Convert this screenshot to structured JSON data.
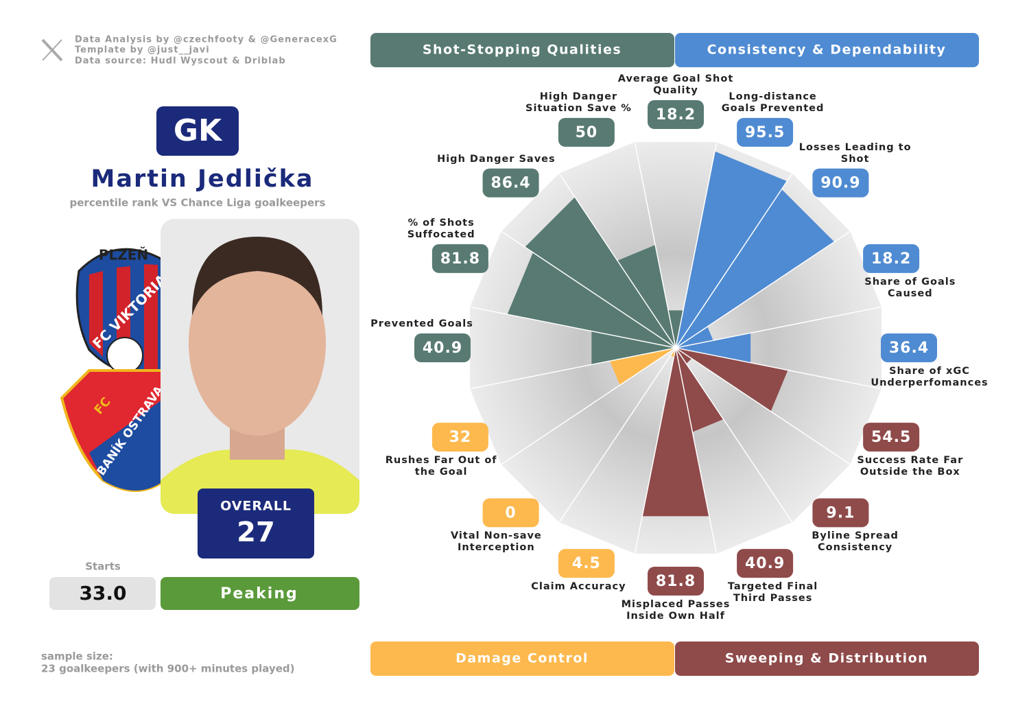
{
  "credits": [
    "Data Analysis by @czechfooty & @GeneracexG",
    "Template by @just__javi",
    "Data source: Hudl Wyscout & Driblab"
  ],
  "player": {
    "position": "GK",
    "name": "Martin Jedlička",
    "subtitle": "percentile rank VS Chance Liga goalkeepers",
    "overall_label": "OVERALL",
    "overall": 27,
    "starts_label": "Starts",
    "starts": "33.0",
    "form": "Peaking"
  },
  "logos": {
    "club_1_top": "PLZEŇ",
    "club_1_name": "FC VIKTORIA",
    "club_2_prefix": "FC",
    "club_2_name": "BANÍK OSTRAVA"
  },
  "sample_size": [
    "sample size:",
    "23 goalkeepers (with 900+ minutes played)"
  ],
  "chart_data": {
    "type": "polar-bar",
    "rlim": [
      0,
      100
    ],
    "categories": [
      "Average Goal Shot Quality",
      "Long-distance Goals Prevented",
      "Losses Leading to Shot",
      "Share of Goals Caused",
      "Share of xGC Underperfomances",
      "Success Rate Far Outside the Box",
      "Byline Spread Consistency",
      "Targeted Final Third Passes",
      "Misplaced Passes Inside Own Half",
      "Claim Accuracy",
      "Vital Non-save Interception",
      "Rushes Far Out of the Goal",
      "Prevented Goals",
      "% of Shots Suffocated",
      "High Danger Saves",
      "High Danger Situation Save %"
    ],
    "series": [
      {
        "name": "Shot-Stopping Qualities",
        "color": "#587a72",
        "values": [
          18.2,
          null,
          null,
          null,
          null,
          null,
          null,
          null,
          null,
          null,
          null,
          null,
          40.9,
          81.8,
          86.4,
          50
        ]
      },
      {
        "name": "Consistency & Dependability",
        "color": "#4f8bd2",
        "values": [
          null,
          95.5,
          90.9,
          18.2,
          36.4,
          null,
          null,
          null,
          null,
          null,
          null,
          null,
          null,
          null,
          null,
          null
        ]
      },
      {
        "name": "Damage Control",
        "color": "#fdb94e",
        "values": [
          null,
          null,
          null,
          null,
          null,
          null,
          null,
          null,
          null,
          4.5,
          0,
          32,
          null,
          null,
          null,
          null
        ]
      },
      {
        "name": "Sweeping & Distribution",
        "color": "#8f4a4a",
        "values": [
          null,
          null,
          null,
          null,
          null,
          54.5,
          9.1,
          40.9,
          81.8,
          null,
          null,
          null,
          null,
          null,
          null,
          null
        ]
      }
    ]
  }
}
